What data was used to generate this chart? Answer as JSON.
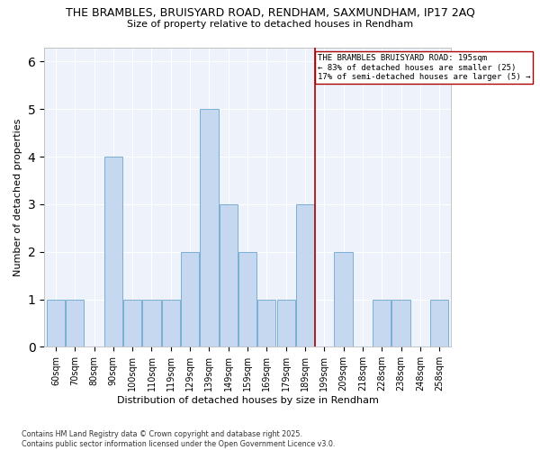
{
  "title_line1": "THE BRAMBLES, BRUISYARD ROAD, RENDHAM, SAXMUNDHAM, IP17 2AQ",
  "title_line2": "Size of property relative to detached houses in Rendham",
  "categories": [
    "60sqm",
    "70sqm",
    "80sqm",
    "90sqm",
    "100sqm",
    "110sqm",
    "119sqm",
    "129sqm",
    "139sqm",
    "149sqm",
    "159sqm",
    "169sqm",
    "179sqm",
    "189sqm",
    "199sqm",
    "209sqm",
    "218sqm",
    "228sqm",
    "238sqm",
    "248sqm",
    "258sqm"
  ],
  "values": [
    1,
    1,
    0,
    4,
    1,
    1,
    1,
    2,
    5,
    3,
    2,
    1,
    1,
    3,
    0,
    2,
    0,
    1,
    1,
    0,
    1
  ],
  "bar_color": "#c5d8f0",
  "bar_edge_color": "#7bafd4",
  "ylabel": "Number of detached properties",
  "xlabel": "Distribution of detached houses by size in Rendham",
  "ylim": [
    0,
    6.3
  ],
  "yticks": [
    0,
    1,
    2,
    3,
    4,
    5,
    6
  ],
  "vline_x_idx": 13.5,
  "vline_color": "#aa0000",
  "annotation_text": "THE BRAMBLES BRUISYARD ROAD: 195sqm\n← 83% of detached houses are smaller (25)\n17% of semi-detached houses are larger (5) →",
  "annotation_box_color": "#ffffff",
  "annotation_box_edge": "#aa0000",
  "footer": "Contains HM Land Registry data © Crown copyright and database right 2025.\nContains public sector information licensed under the Open Government Licence v3.0.",
  "bg_color": "#eef2fb",
  "grid_color": "#ffffff"
}
